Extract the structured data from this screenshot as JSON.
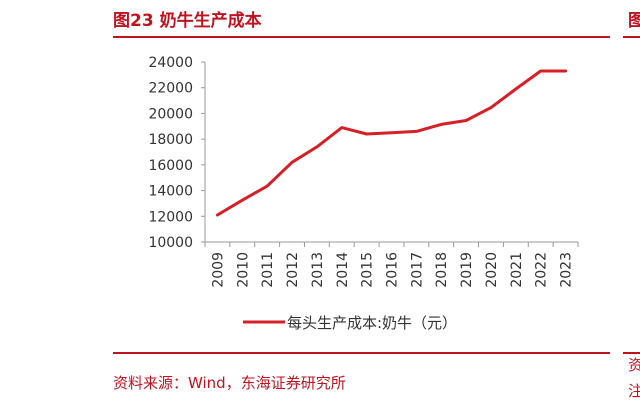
{
  "header": {
    "title": "图23  奶牛生产成本"
  },
  "footer": {
    "source": "资料来源：Wind，东海证券研究所"
  },
  "edge_fragments": {
    "top_right": "图",
    "bottom_right_1": "资",
    "bottom_right_2": "注"
  },
  "colors": {
    "accent": "#c0121f",
    "line": "#d61f26",
    "axis": "#999999",
    "text": "#333333"
  },
  "chart_data": {
    "type": "line",
    "x": [
      "2009",
      "2010",
      "2011",
      "2012",
      "2013",
      "2014",
      "2015",
      "2016",
      "2017",
      "2018",
      "2019",
      "2020",
      "2021",
      "2022",
      "2023"
    ],
    "series": [
      {
        "name": "每头生产成本:奶牛（元）",
        "values": [
          12100,
          13250,
          14350,
          16200,
          17400,
          18900,
          18400,
          18500,
          18600,
          19150,
          19450,
          20450,
          21900,
          23300,
          23300
        ]
      }
    ],
    "ylim": [
      10000,
      24000
    ],
    "yticks": [
      10000,
      12000,
      14000,
      16000,
      18000,
      20000,
      22000,
      24000
    ],
    "grid": false,
    "legend": "bottom-center"
  }
}
